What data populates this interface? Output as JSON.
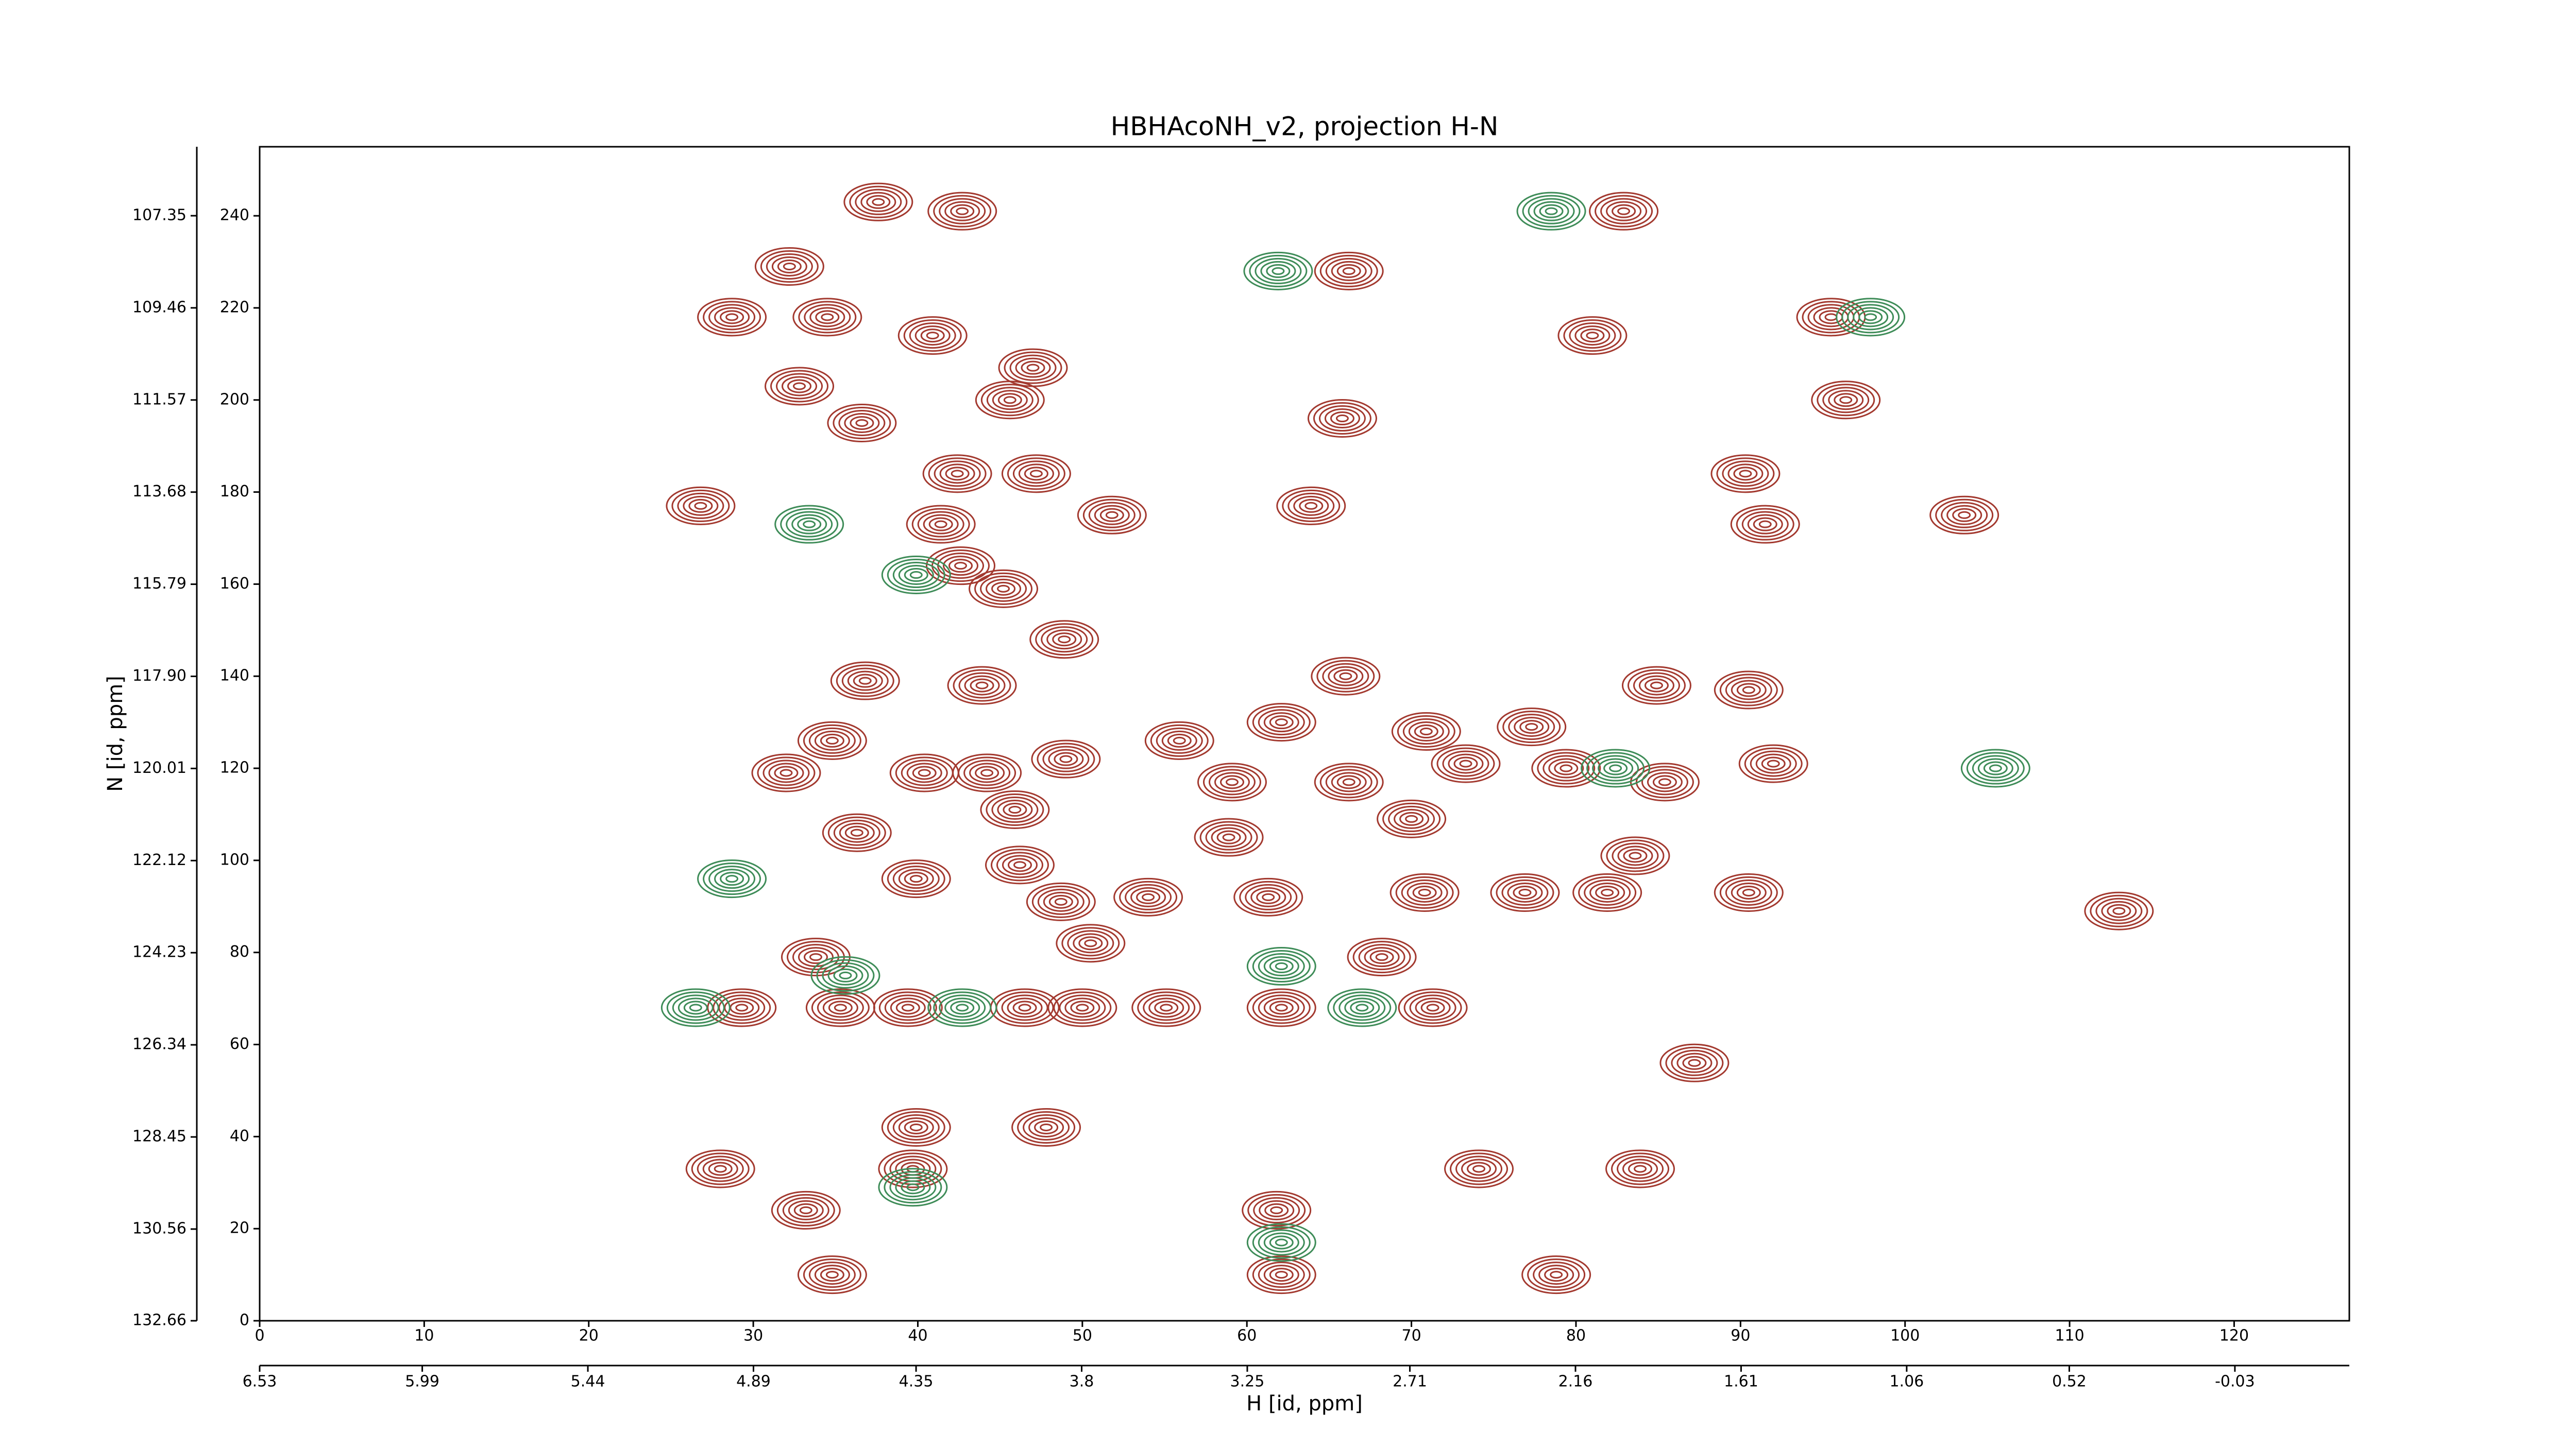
{
  "chart_data": {
    "type": "contour",
    "title": "HBHAcoNH_v2, projection H-N",
    "x_label": "H [id, ppm]",
    "y_label": "N [id, ppm]",
    "xlim": [
      0,
      127
    ],
    "ylim": [
      0,
      255
    ],
    "xticks": [
      0,
      10,
      20,
      30,
      40,
      50,
      60,
      70,
      80,
      90,
      100,
      110,
      120
    ],
    "yticks": [
      0,
      20,
      40,
      60,
      80,
      100,
      120,
      140,
      160,
      180,
      200,
      220,
      240
    ],
    "x2lim": [
      6.53,
      -0.41
    ],
    "x2ticks": [
      6.53,
      5.99,
      5.44,
      4.89,
      4.35,
      3.8,
      3.25,
      2.71,
      2.16,
      1.61,
      1.06,
      0.52,
      -0.03
    ],
    "y2lim": [
      132.66,
      105.77
    ],
    "y2ticks": [
      132.66,
      130.56,
      128.45,
      126.34,
      124.23,
      122.12,
      120.01,
      {
        "value": 117.9,
        "label": "117.90"
      },
      115.79,
      113.68,
      111.57,
      109.46,
      107.35
    ],
    "series": [
      {
        "color": "#a3392f",
        "x": [
          37.6,
          42.7,
          82.9,
          66.2,
          32.2,
          28.7,
          34.5,
          40.9,
          95.5,
          81,
          47,
          32.8,
          36.6,
          45.6,
          96.4,
          65.8,
          26.8,
          47.2,
          42.4,
          51.8,
          41.4,
          63.9,
          103.6,
          91.5,
          90.3,
          42.6,
          45.2,
          48.9,
          66,
          84.9,
          43.9,
          36.8,
          90.5,
          62.1,
          77.3,
          70.9,
          34.8,
          49,
          40.4,
          92,
          79.4,
          73.3,
          55.9,
          44.2,
          32,
          59.1,
          66.2,
          85.4,
          70,
          58.9,
          45.9,
          36.3,
          83.6,
          46.2,
          39.9,
          54,
          76.9,
          81.9,
          90.5,
          70.8,
          48.7,
          33.8,
          50.5,
          68.2,
          61.3,
          29.3,
          35.3,
          39.4,
          46.5,
          50,
          55.1,
          62.1,
          71.3,
          87.2,
          39.9,
          47.8,
          39.7,
          28,
          83.9,
          74.1,
          33.2,
          61.8,
          34.8,
          62.1,
          78.8,
          113
        ],
        "values": [
          243,
          241,
          241,
          228,
          229,
          218,
          218,
          214,
          218,
          214,
          207,
          203,
          195,
          200,
          200,
          196,
          177,
          184,
          184,
          175,
          173,
          177,
          175,
          173,
          184,
          164,
          159,
          148,
          140,
          138,
          138,
          139,
          137,
          130,
          129,
          128,
          126,
          122,
          119,
          121,
          120,
          121,
          126,
          119,
          119,
          117,
          117,
          117,
          109,
          105,
          111,
          106,
          101,
          99,
          96,
          92,
          93,
          93,
          93,
          93,
          91,
          79,
          82,
          79,
          92,
          68,
          68,
          68,
          68,
          68,
          68,
          68,
          68,
          56,
          42,
          42,
          33,
          33,
          33,
          33,
          24,
          24,
          10,
          10,
          10,
          89
        ]
      },
      {
        "color": "#3e8c58",
        "x": [
          26.5,
          42.7,
          67,
          35.6,
          62.1,
          62.1,
          105.5,
          97.9,
          78.5,
          61.9,
          28.7,
          39.7,
          82.4,
          39.9,
          33.4
        ],
        "values": [
          68,
          68,
          68,
          75,
          77,
          17,
          120,
          218,
          241,
          228,
          96,
          29,
          120,
          162,
          173
        ]
      }
    ]
  }
}
